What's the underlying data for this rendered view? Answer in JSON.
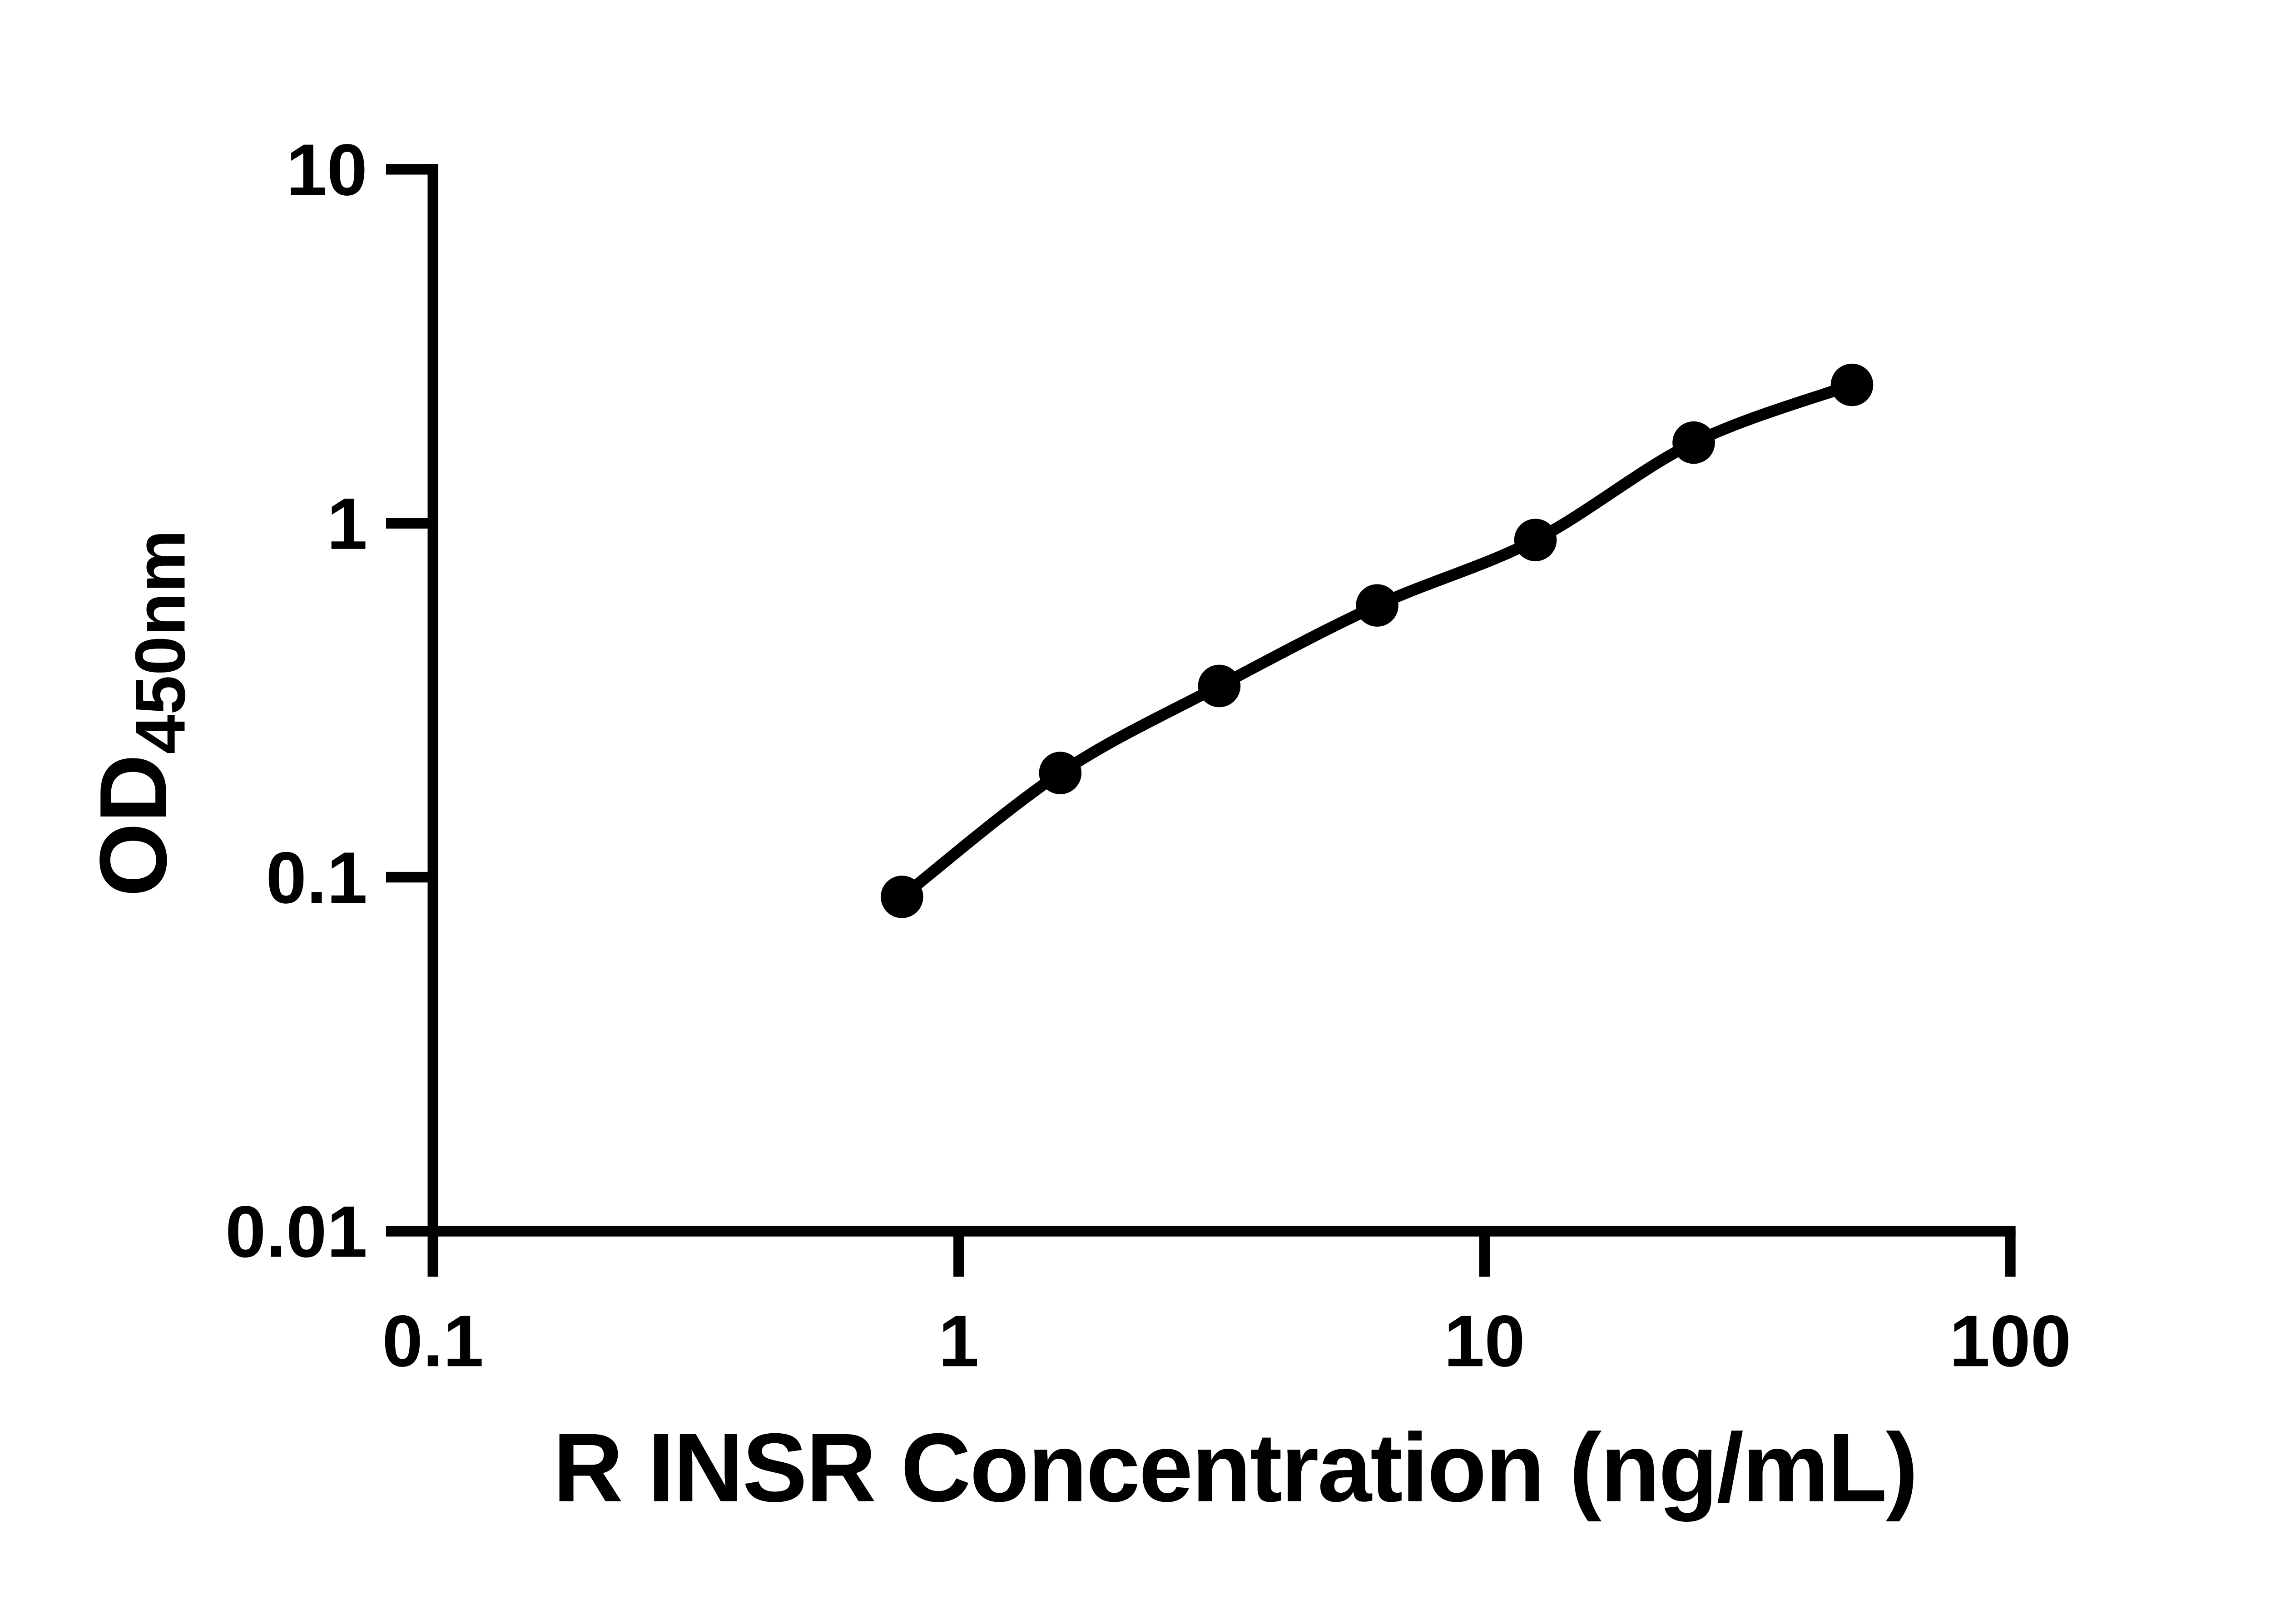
{
  "figure": {
    "background_color": "#ffffff",
    "ink_color": "#000000"
  },
  "chart_data": {
    "type": "scatter",
    "title": "",
    "xlabel": "R INSR Concentration (ng/mL)",
    "ylabel_main": "OD",
    "ylabel_sub": "450nm",
    "x_scale": "log10",
    "y_scale": "log10",
    "xlim": [
      0.1,
      100
    ],
    "ylim": [
      0.01,
      10
    ],
    "grid": false,
    "legend": false,
    "x_ticks": [
      {
        "value": 0.1,
        "label": "0.1"
      },
      {
        "value": 1,
        "label": "1"
      },
      {
        "value": 10,
        "label": "10"
      },
      {
        "value": 100,
        "label": "100"
      }
    ],
    "y_ticks": [
      {
        "value": 0.01,
        "label": "0.01"
      },
      {
        "value": 0.1,
        "label": "0.1"
      },
      {
        "value": 1,
        "label": "1"
      },
      {
        "value": 10,
        "label": "10"
      }
    ],
    "series": [
      {
        "marker": "filled-circle",
        "line": "smooth-fit-curve",
        "points": [
          {
            "x": 0.78,
            "y": 0.088
          },
          {
            "x": 1.56,
            "y": 0.197
          },
          {
            "x": 3.13,
            "y": 0.347
          },
          {
            "x": 6.25,
            "y": 0.586
          },
          {
            "x": 12.5,
            "y": 0.897
          },
          {
            "x": 25,
            "y": 1.69
          },
          {
            "x": 50,
            "y": 2.46
          }
        ]
      }
    ]
  }
}
